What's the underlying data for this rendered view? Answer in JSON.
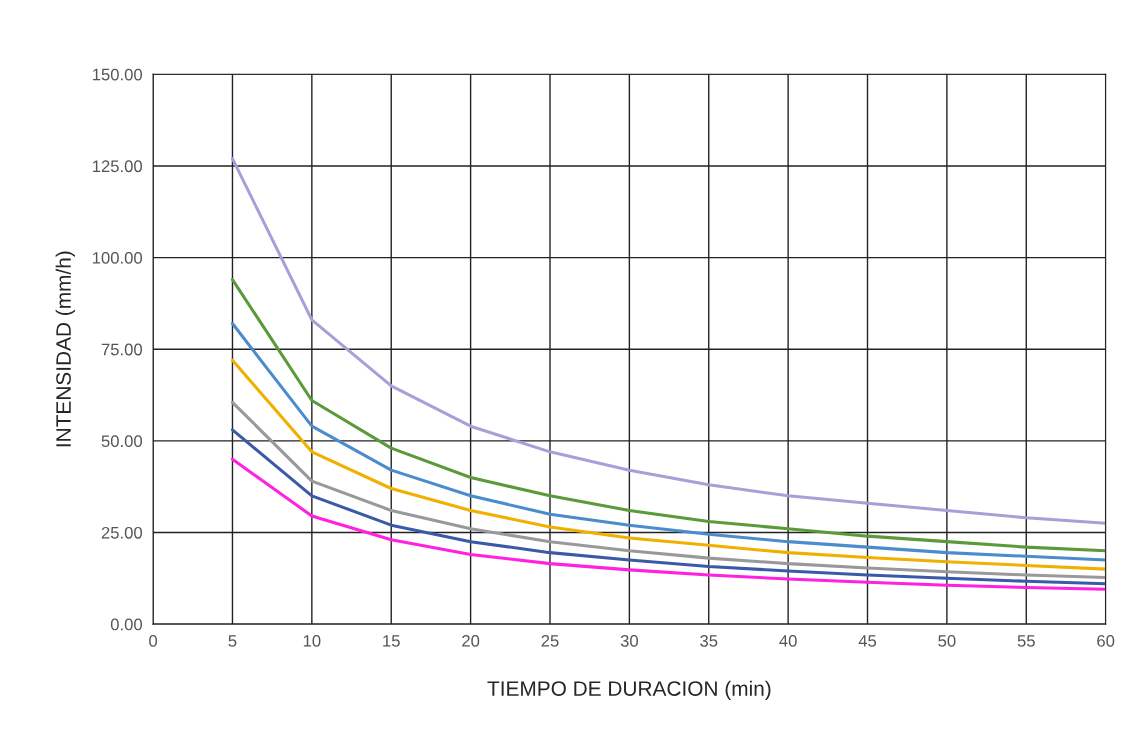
{
  "chart_data": {
    "type": "line",
    "xlabel": "TIEMPO DE DURACION (min)",
    "ylabel": "INTENSIDAD (mm/h)",
    "x": [
      5,
      10,
      15,
      20,
      25,
      30,
      35,
      40,
      45,
      50,
      55,
      60
    ],
    "series": [
      {
        "color": "#a6a0d8",
        "values": [
          127,
          83,
          65,
          54,
          47,
          42,
          38,
          35,
          33,
          31,
          29,
          27.5
        ]
      },
      {
        "color": "#5a9a3a",
        "values": [
          94,
          61,
          48,
          40,
          35,
          31,
          28,
          26,
          24,
          22.5,
          21,
          20
        ]
      },
      {
        "color": "#4a8ccc",
        "values": [
          82,
          54,
          42,
          35,
          30,
          27,
          24.5,
          22.5,
          21,
          19.5,
          18.5,
          17.5
        ]
      },
      {
        "color": "#f0b000",
        "values": [
          72,
          47,
          37,
          31,
          26.5,
          23.5,
          21.5,
          19.5,
          18.2,
          17,
          16,
          15
        ]
      },
      {
        "color": "#999999",
        "values": [
          60.5,
          39,
          31,
          26,
          22.5,
          20,
          18,
          16.5,
          15.3,
          14.3,
          13.4,
          12.7
        ]
      },
      {
        "color": "#3a5aa8",
        "values": [
          53,
          35,
          27,
          22.5,
          19.5,
          17.5,
          15.7,
          14.5,
          13.4,
          12.5,
          11.7,
          11
        ]
      },
      {
        "color": "#ff20e0",
        "values": [
          45,
          29.5,
          23,
          19,
          16.5,
          14.8,
          13.4,
          12.3,
          11.4,
          10.6,
          10,
          9.5
        ]
      }
    ],
    "xlim": [
      0,
      60
    ],
    "xticks": [
      0,
      5,
      10,
      15,
      20,
      25,
      30,
      35,
      40,
      45,
      50,
      55,
      60
    ],
    "ylim": [
      0,
      150
    ],
    "yticks": [
      {
        "value": 0,
        "label": "0.00"
      },
      {
        "value": 25,
        "label": "25.00"
      },
      {
        "value": 50,
        "label": "50.00"
      },
      {
        "value": 75,
        "label": "75.00"
      },
      {
        "value": 100,
        "label": "100.00"
      },
      {
        "value": 125,
        "label": "125.00"
      },
      {
        "value": 150,
        "label": "150.00"
      }
    ],
    "grid": true,
    "marker": "none",
    "line_style": "solid"
  }
}
